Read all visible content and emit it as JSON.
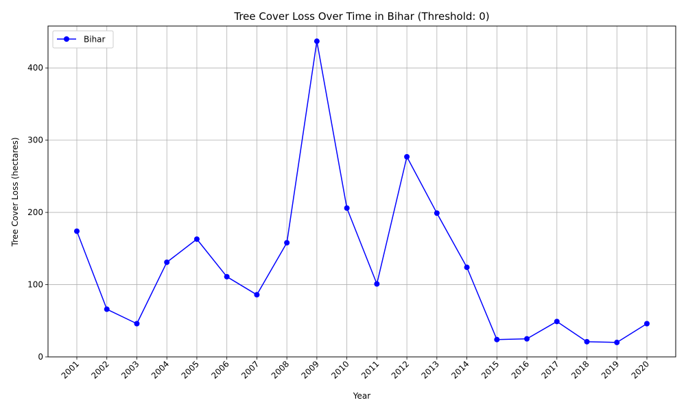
{
  "chart_data": {
    "type": "line",
    "title": "Tree Cover Loss Over Time in Bihar (Threshold: 0)",
    "xlabel": "Year",
    "ylabel": "Tree Cover Loss (hectares)",
    "categories": [
      "2001",
      "2002",
      "2003",
      "2004",
      "2005",
      "2006",
      "2007",
      "2008",
      "2009",
      "2010",
      "2011",
      "2012",
      "2013",
      "2014",
      "2015",
      "2016",
      "2017",
      "2018",
      "2019",
      "2020"
    ],
    "series": [
      {
        "name": "Bihar",
        "color": "#0000ff",
        "marker": "circle",
        "values": [
          174,
          66,
          46,
          131,
          163,
          111,
          86,
          158,
          437,
          206,
          101,
          277,
          199,
          124,
          24,
          25,
          49,
          21,
          20,
          46
        ]
      }
    ],
    "yticks": [
      0,
      100,
      200,
      300,
      400
    ],
    "ylim": [
      0,
      458
    ],
    "grid": true,
    "legend": "top-left",
    "x_tick_rotation": 45
  }
}
